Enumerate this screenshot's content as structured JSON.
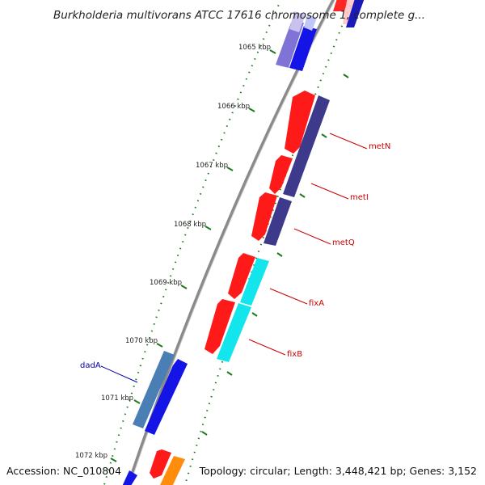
{
  "title": "Burkholderia multivorans ATCC 17616 chromosome 1, complete g...",
  "footer": {
    "accession": "Accession: NC_010804",
    "info": "Topology: circular; Length: 3,448,421 bp; Genes: 3,152"
  },
  "ticks": [
    "1065 kbp",
    "1066 kbp",
    "1067 kbp",
    "1068 kbp",
    "1069 kbp",
    "1070 kbp",
    "1071 kbp",
    "1072 kbp"
  ],
  "colors": {
    "backbone": "#8a8a8a",
    "tick": "#1d7a1d",
    "forward_label": "#cc0000",
    "reverse_label": "#0000aa",
    "red": "#ff1a1a",
    "slate": "#3d3a8c",
    "cyan": "#12e6ec",
    "blue": "#1414e6",
    "steel": "#4a7fb5",
    "lavender": "#7f74d6",
    "orange": "#ff8c0a"
  },
  "genes": [
    {
      "name": "metN",
      "color": "slate"
    },
    {
      "name": "metI",
      "color": "slate"
    },
    {
      "name": "metQ",
      "color": "slate"
    },
    {
      "name": "fixA",
      "color": "cyan"
    },
    {
      "name": "fixB",
      "color": "cyan"
    },
    {
      "name": "dadA",
      "color": "steel"
    }
  ]
}
